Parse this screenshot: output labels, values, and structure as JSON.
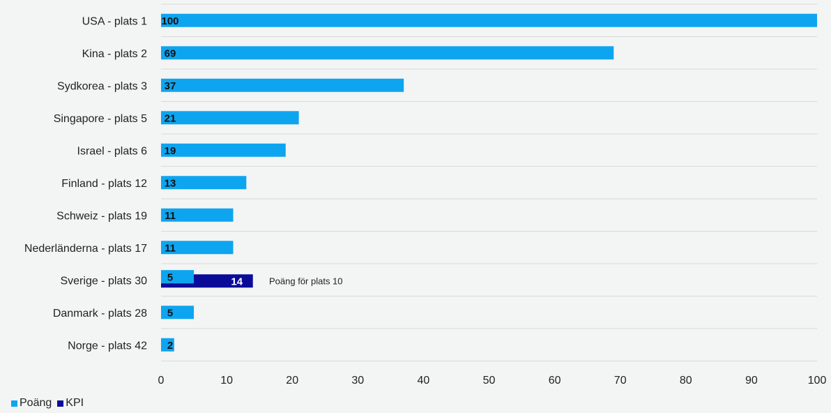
{
  "chart_data": {
    "type": "bar",
    "orientation": "horizontal",
    "categories": [
      "USA - plats 1",
      "Kina - plats 2",
      "Sydkorea - plats 3",
      "Singapore - plats 5",
      "Israel - plats 6",
      "Finland - plats 12",
      "Schweiz - plats 19",
      "Nederländerna - plats 17",
      "Sverige - plats 30",
      "Danmark - plats 28",
      "Norge - plats 42"
    ],
    "series": [
      {
        "name": "Poäng",
        "color": "#0ea5f0",
        "label_color": "#111111",
        "values": [
          100,
          69,
          37,
          21,
          19,
          13,
          11,
          11,
          5,
          5,
          2
        ]
      },
      {
        "name": "KPI",
        "color": "#0b0b9a",
        "label_color": "#ffffff",
        "values": [
          null,
          null,
          null,
          null,
          null,
          null,
          null,
          null,
          14,
          null,
          null
        ]
      }
    ],
    "annotations": [
      {
        "category": "Sverige - plats 30",
        "text": "Poäng för plats 10"
      }
    ],
    "xlim": [
      0,
      100
    ],
    "xticks": [
      0,
      10,
      20,
      30,
      40,
      50,
      60,
      70,
      80,
      90,
      100
    ],
    "grid": "horizontal",
    "legend": "bottom-left"
  }
}
